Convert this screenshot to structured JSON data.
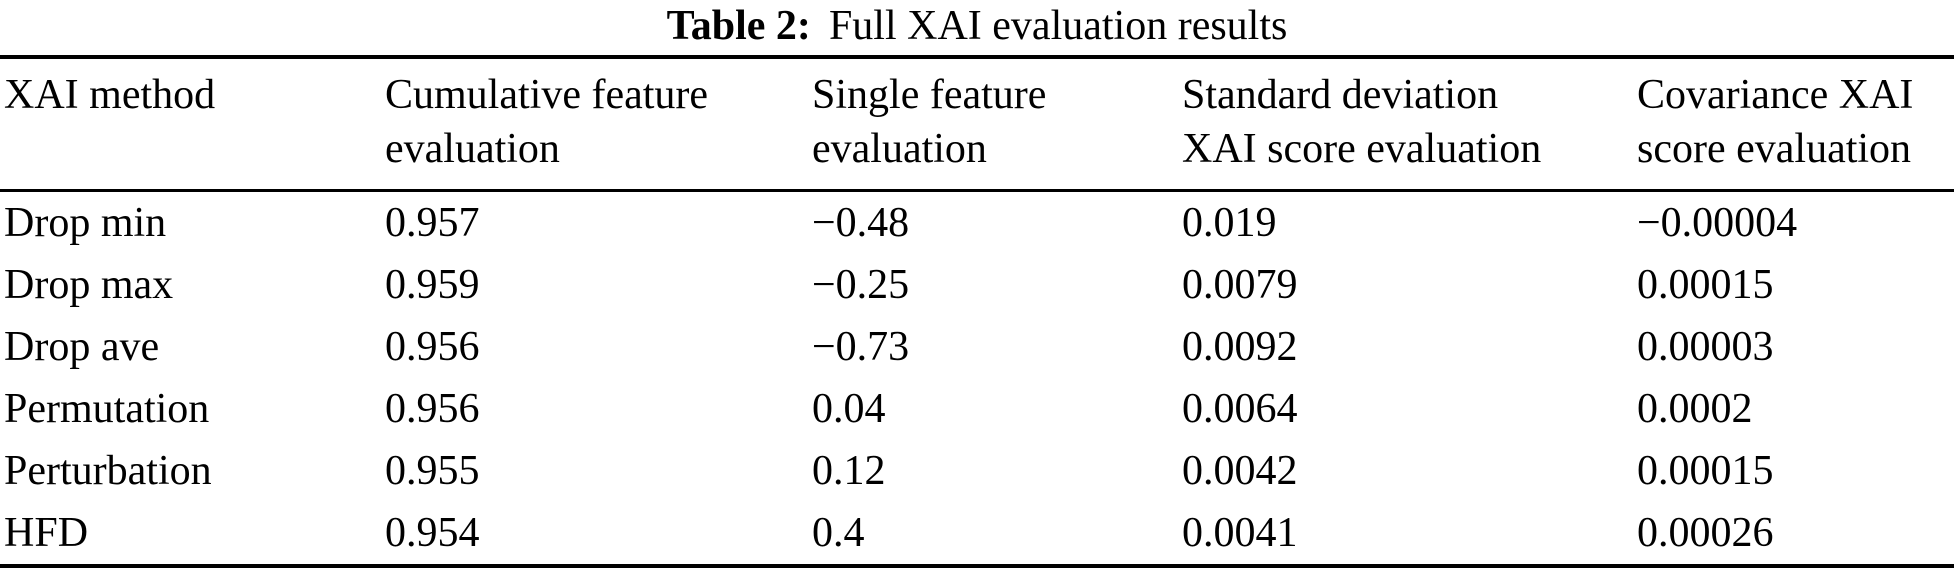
{
  "caption": {
    "label": "Table 2:",
    "title": "Full XAI evaluation results"
  },
  "chart_data": {
    "type": "table",
    "columns": [
      {
        "line1": "XAI method",
        "line2": ""
      },
      {
        "line1": "Cumulative feature",
        "line2": "evaluation"
      },
      {
        "line1": "Single feature",
        "line2": "evaluation"
      },
      {
        "line1": "Standard deviation",
        "line2": "XAI score evaluation"
      },
      {
        "line1": "Covariance XAI",
        "line2": "score evaluation"
      }
    ],
    "rows": [
      {
        "method": "Drop min",
        "cumulative": "0.957",
        "single": "−0.48",
        "std": "0.019",
        "cov": "−0.00004"
      },
      {
        "method": "Drop max",
        "cumulative": "0.959",
        "single": "−0.25",
        "std": "0.0079",
        "cov": "0.00015"
      },
      {
        "method": "Drop ave",
        "cumulative": "0.956",
        "single": "−0.73",
        "std": "0.0092",
        "cov": "0.00003"
      },
      {
        "method": "Permutation",
        "cumulative": "0.956",
        "single": "0.04",
        "std": "0.0064",
        "cov": "0.0002"
      },
      {
        "method": "Perturbation",
        "cumulative": "0.955",
        "single": "0.12",
        "std": "0.0042",
        "cov": "0.00015"
      },
      {
        "method": "HFD",
        "cumulative": "0.954",
        "single": "0.4",
        "std": "0.0041",
        "cov": "0.00026"
      }
    ],
    "colors": {
      "text": "#000000",
      "background": "#ffffff",
      "rule": "#000000"
    }
  }
}
